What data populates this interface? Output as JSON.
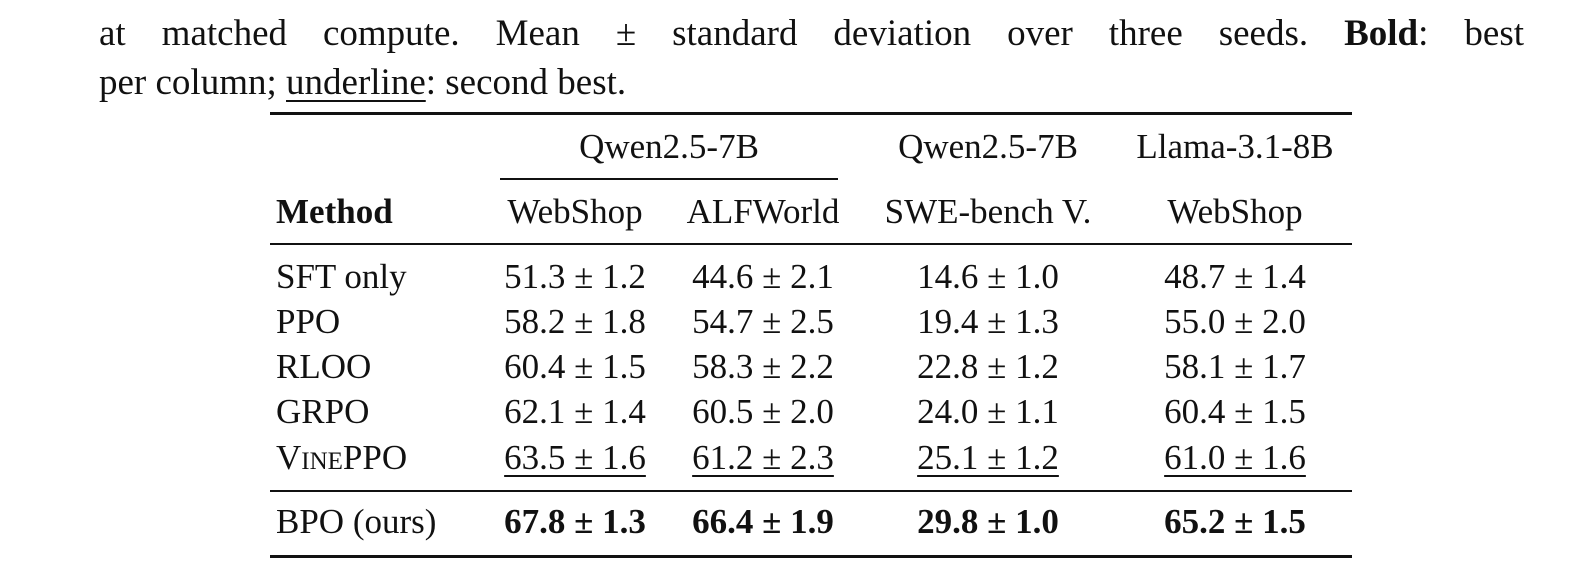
{
  "caption": {
    "lines": [
      [
        "at matched compute. Mean ± standard deviation over three seeds.",
        "Bold",
        ": best"
      ],
      [
        "per column;",
        "underline",
        ": second best."
      ]
    ]
  },
  "table": {
    "groups": [
      "Qwen2.5-7B",
      "Qwen2.5-7B",
      "Llama-3.1-8B"
    ],
    "columns": [
      "Method",
      "WebShop",
      "ALFWorld",
      "SWE-bench V.",
      "WebShop"
    ],
    "rows": [
      [
        "SFT only",
        "51.3 ± 1.2",
        "44.6 ± 2.1",
        "14.6 ± 1.0",
        "48.7 ± 1.4"
      ],
      [
        "PPO",
        "58.2 ± 1.8",
        "54.7 ± 2.5",
        "19.4 ± 1.3",
        "55.0 ± 2.0"
      ],
      [
        "RLOO",
        "60.4 ± 1.5",
        "58.3 ± 2.2",
        "22.8 ± 1.2",
        "58.1 ± 1.7"
      ],
      [
        "GRPO",
        "62.1 ± 1.4",
        "60.5 ± 2.0",
        "24.0 ± 1.1",
        "60.4 ± 1.5"
      ],
      [
        "VinePPO",
        "63.5 ± 1.6",
        "61.2 ± 2.3",
        "25.1 ± 1.2",
        "61.0 ± 1.6"
      ],
      [
        "BPO (ours)",
        "67.8 ± 1.3",
        "66.4 ± 1.9",
        "29.8 ± 1.0",
        "65.2 ± 1.5"
      ]
    ]
  }
}
